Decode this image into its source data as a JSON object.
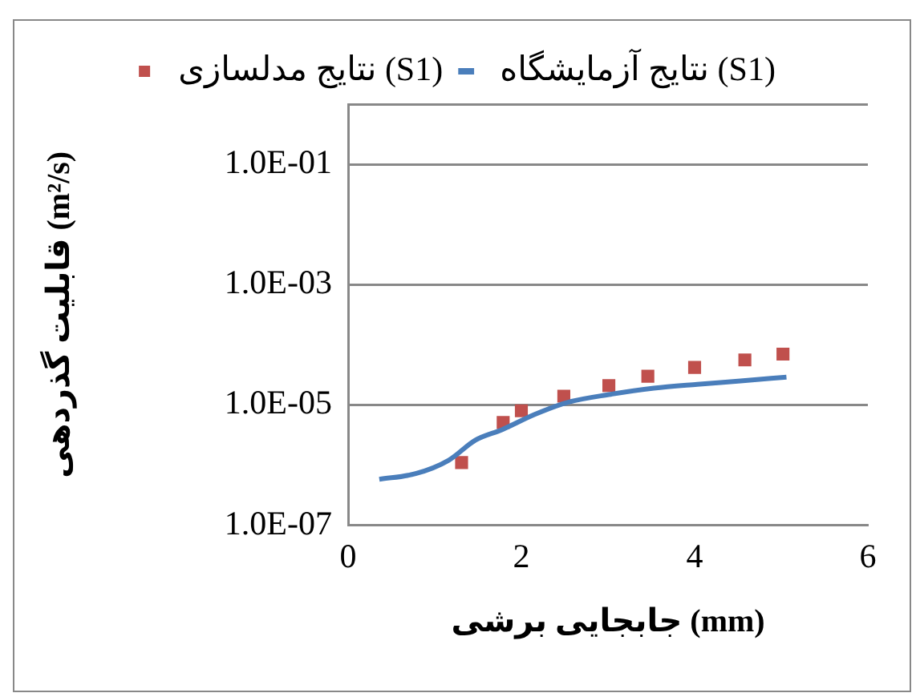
{
  "chart_data": {
    "type": "scatter",
    "xlabel": "جابجایی برشی (mm)",
    "ylabel": "قابلیت گذردهی (m²/s)",
    "log": "y",
    "grid": "y",
    "legend": "top",
    "xlim": [
      0,
      6
    ],
    "xticks": [
      0,
      2,
      4,
      6
    ],
    "ylim": [
      1e-07,
      1
    ],
    "yticks": [
      {
        "value": 1e-07,
        "label": "1.0E-07"
      },
      {
        "value": 1e-05,
        "label": "1.0E-05"
      },
      {
        "value": 0.001,
        "label": "1.0E-03"
      },
      {
        "value": 0.1,
        "label": "1.0E-01"
      },
      {
        "value": 1,
        "label": null
      }
    ],
    "series": [
      {
        "name": "نتایج آزمایشگاه (S1)",
        "type": "line",
        "color": "#4a7ebb",
        "marker": "none",
        "line_style": "solid",
        "x": [
          0.36,
          0.78,
          1.16,
          1.47,
          1.78,
          2.16,
          2.53,
          3.03,
          3.53,
          4.03,
          4.53,
          5.06
        ],
        "values": [
          5.8e-07,
          7.2e-07,
          1.2e-06,
          2.6e-06,
          3.9e-06,
          7e-06,
          1.1e-05,
          1.5e-05,
          1.9e-05,
          2.2e-05,
          2.5e-05,
          2.9e-05
        ]
      },
      {
        "name": "نتایج مدلسازی (S1)",
        "type": "scatter",
        "color": "#c0504d",
        "marker": "square",
        "x": [
          1.31,
          1.79,
          2.0,
          2.49,
          3.01,
          3.46,
          4.0,
          4.58,
          5.02
        ],
        "values": [
          1.1e-06,
          5.1e-06,
          8e-06,
          1.4e-05,
          2.1e-05,
          3e-05,
          4.2e-05,
          5.6e-05,
          7e-05
        ]
      }
    ]
  }
}
